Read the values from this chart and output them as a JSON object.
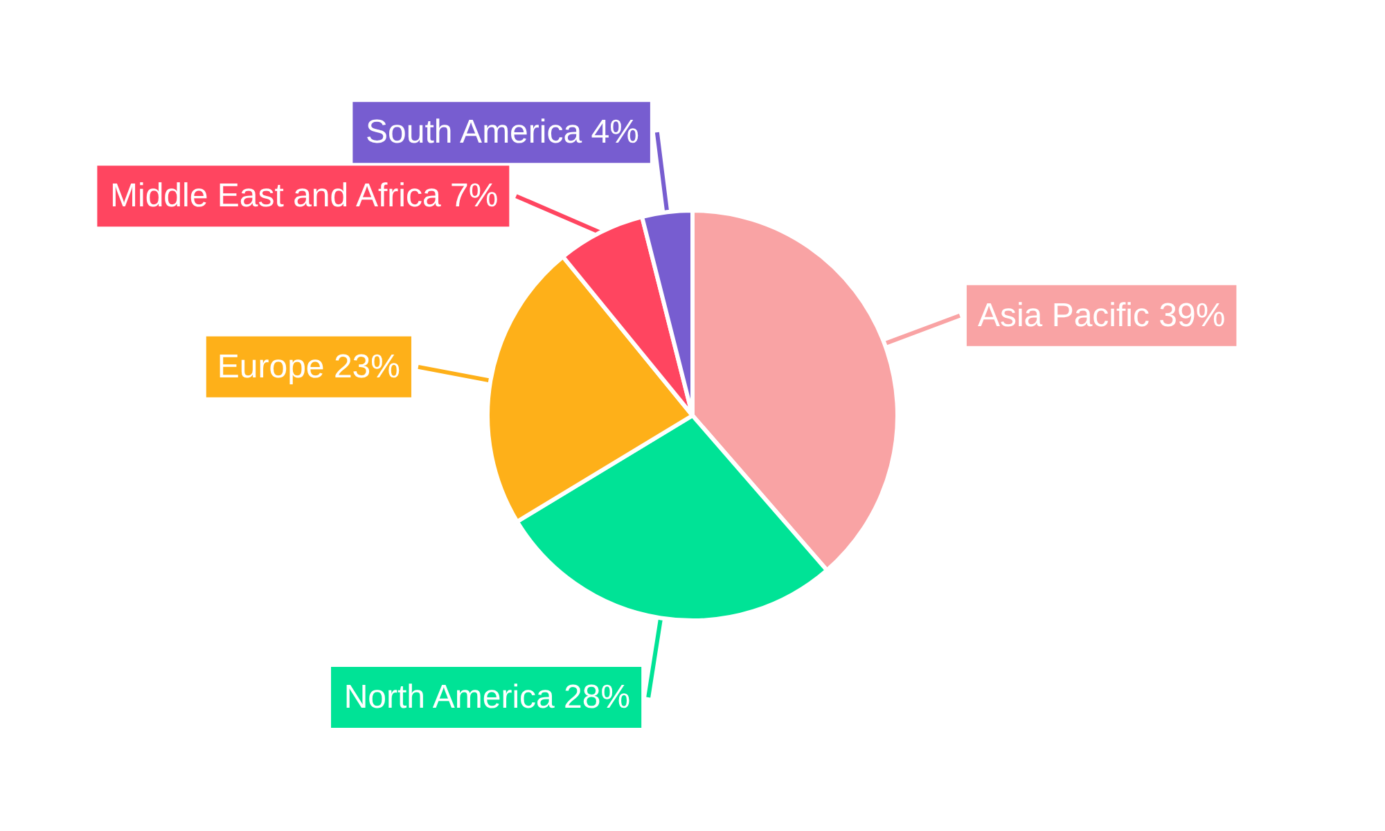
{
  "chart_data": {
    "type": "pie",
    "categories": [
      "Asia Pacific",
      "North America",
      "Europe",
      "Middle East and Africa",
      "South America"
    ],
    "values": [
      39,
      28,
      23,
      7,
      4
    ],
    "value_labels": [
      "39%",
      "28%",
      "23%",
      "7%",
      "4%"
    ],
    "colors": [
      "#f9a3a4",
      "#00e396",
      "#feb019",
      "#ff4560",
      "#775dd0"
    ],
    "legend": false
  }
}
